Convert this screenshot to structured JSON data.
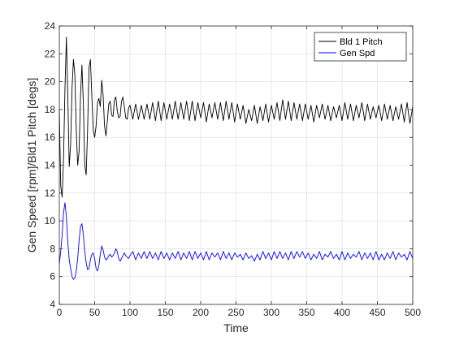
{
  "chart_data": {
    "type": "line",
    "title": "",
    "xlabel": "Time",
    "ylabel": "Gen Speed [rpm]/Bld1 Pitch [degs]",
    "xlim": [
      0,
      500
    ],
    "ylim": [
      4,
      24
    ],
    "xticks": [
      0,
      50,
      100,
      150,
      200,
      250,
      300,
      350,
      400,
      450,
      500
    ],
    "yticks": [
      4,
      6,
      8,
      10,
      12,
      14,
      16,
      18,
      20,
      22,
      24
    ],
    "grid": true,
    "legend_position": "top-right",
    "series": [
      {
        "name": "Bld 1 Pitch",
        "color": "#000000",
        "x": [
          0,
          2,
          4,
          6,
          8,
          10,
          12,
          14,
          16,
          18,
          20,
          22,
          24,
          26,
          28,
          30,
          32,
          34,
          36,
          38,
          40,
          42,
          44,
          46,
          48,
          50,
          52,
          54,
          56,
          58,
          60,
          62,
          64,
          66,
          68,
          70,
          72,
          74,
          76,
          78,
          80,
          82,
          84,
          86,
          88,
          90,
          92,
          94,
          96,
          98,
          100,
          104,
          108,
          112,
          116,
          120,
          124,
          128,
          132,
          136,
          140,
          144,
          148,
          152,
          156,
          160,
          164,
          168,
          172,
          176,
          180,
          184,
          188,
          192,
          196,
          200,
          204,
          208,
          212,
          216,
          220,
          224,
          228,
          232,
          236,
          240,
          244,
          248,
          252,
          256,
          260,
          264,
          268,
          272,
          276,
          280,
          284,
          288,
          292,
          296,
          300,
          304,
          308,
          312,
          316,
          320,
          324,
          328,
          332,
          336,
          340,
          344,
          348,
          352,
          356,
          360,
          364,
          368,
          372,
          376,
          380,
          384,
          388,
          392,
          396,
          400,
          404,
          408,
          412,
          416,
          420,
          424,
          428,
          432,
          436,
          440,
          444,
          448,
          452,
          456,
          460,
          464,
          468,
          472,
          476,
          480,
          484,
          488,
          492,
          496,
          500
        ],
        "values": [
          18.0,
          12.5,
          11.7,
          14.5,
          19.5,
          23.2,
          19.0,
          13.9,
          15.5,
          19.5,
          21.6,
          20.5,
          16.5,
          14.0,
          15.0,
          19.0,
          21.2,
          18.5,
          14.0,
          13.3,
          16.5,
          21.0,
          21.6,
          19.0,
          16.5,
          16.0,
          16.8,
          18.5,
          18.8,
          18.2,
          20.1,
          19.0,
          16.8,
          16.1,
          17.2,
          18.4,
          18.6,
          17.6,
          17.5,
          18.7,
          18.9,
          17.9,
          17.4,
          17.5,
          18.6,
          18.9,
          18.2,
          17.4,
          17.3,
          18.1,
          18.3,
          17.3,
          18.4,
          17.3,
          18.3,
          17.3,
          18.4,
          17.3,
          18.5,
          17.2,
          18.6,
          17.2,
          18.5,
          17.3,
          18.4,
          17.3,
          18.6,
          17.3,
          18.5,
          17.3,
          18.6,
          17.2,
          18.6,
          17.2,
          18.5,
          17.4,
          18.5,
          17.1,
          18.4,
          17.4,
          18.5,
          17.3,
          18.5,
          17.2,
          18.6,
          17.3,
          18.5,
          17.1,
          18.4,
          17.3,
          18.3,
          17.0,
          18.0,
          17.2,
          18.3,
          17.0,
          18.2,
          17.2,
          18.4,
          17.1,
          18.3,
          17.3,
          18.5,
          17.2,
          18.7,
          17.3,
          18.6,
          17.2,
          18.5,
          17.3,
          18.4,
          17.2,
          18.4,
          17.3,
          18.3,
          17.1,
          18.3,
          17.4,
          18.4,
          17.3,
          18.3,
          17.2,
          18.2,
          17.4,
          18.3,
          17.2,
          18.5,
          17.3,
          18.4,
          17.2,
          18.3,
          17.4,
          18.5,
          17.2,
          18.4,
          17.3,
          18.2,
          17.4,
          18.3,
          17.2,
          18.4,
          17.3,
          18.3,
          17.2,
          18.2,
          17.3,
          18.4,
          17.1,
          18.5,
          17.0,
          18.2
        ]
      },
      {
        "name": "Gen Spd",
        "color": "#0000ff",
        "x": [
          0,
          2,
          4,
          6,
          8,
          10,
          12,
          14,
          16,
          18,
          20,
          22,
          24,
          26,
          28,
          30,
          32,
          34,
          36,
          38,
          40,
          42,
          44,
          46,
          48,
          50,
          52,
          54,
          56,
          58,
          60,
          62,
          64,
          66,
          68,
          70,
          72,
          74,
          76,
          78,
          80,
          82,
          84,
          86,
          88,
          90,
          92,
          94,
          96,
          98,
          100,
          104,
          108,
          112,
          116,
          120,
          124,
          128,
          132,
          136,
          140,
          144,
          148,
          152,
          156,
          160,
          164,
          168,
          172,
          176,
          180,
          184,
          188,
          192,
          196,
          200,
          204,
          208,
          212,
          216,
          220,
          224,
          228,
          232,
          236,
          240,
          244,
          248,
          252,
          256,
          260,
          264,
          268,
          272,
          276,
          280,
          284,
          288,
          292,
          296,
          300,
          304,
          308,
          312,
          316,
          320,
          324,
          328,
          332,
          336,
          340,
          344,
          348,
          352,
          356,
          360,
          364,
          368,
          372,
          376,
          380,
          384,
          388,
          392,
          396,
          400,
          404,
          408,
          412,
          416,
          420,
          424,
          428,
          432,
          436,
          440,
          444,
          448,
          452,
          456,
          460,
          464,
          468,
          472,
          476,
          480,
          484,
          488,
          492,
          496,
          500
        ],
        "values": [
          6.9,
          7.8,
          9.0,
          10.6,
          11.3,
          10.3,
          8.5,
          7.2,
          6.6,
          6.0,
          5.8,
          5.9,
          6.4,
          7.3,
          8.6,
          9.6,
          9.8,
          9.0,
          7.8,
          7.0,
          6.5,
          6.6,
          7.2,
          7.6,
          7.7,
          7.3,
          6.6,
          6.4,
          6.8,
          7.6,
          8.2,
          7.9,
          7.4,
          7.2,
          7.3,
          7.5,
          7.6,
          7.4,
          7.5,
          7.7,
          8.0,
          7.8,
          7.3,
          7.1,
          7.3,
          7.5,
          7.7,
          7.5,
          7.4,
          7.3,
          7.5,
          7.8,
          7.2,
          7.7,
          7.3,
          7.8,
          7.3,
          7.8,
          7.3,
          7.7,
          7.2,
          7.8,
          7.3,
          7.7,
          7.2,
          7.7,
          7.3,
          7.8,
          7.2,
          7.7,
          7.3,
          7.8,
          7.2,
          7.8,
          7.3,
          7.7,
          7.2,
          7.8,
          7.2,
          7.7,
          7.4,
          7.7,
          7.2,
          7.8,
          7.3,
          7.7,
          7.2,
          7.7,
          7.4,
          7.6,
          7.2,
          7.7,
          7.3,
          7.5,
          7.1,
          7.6,
          7.2,
          7.8,
          7.3,
          7.7,
          7.2,
          7.8,
          7.3,
          7.8,
          7.3,
          7.7,
          7.2,
          7.8,
          7.3,
          7.8,
          7.4,
          7.8,
          7.3,
          7.7,
          7.2,
          7.6,
          7.3,
          7.8,
          7.2,
          7.6,
          7.4,
          7.8,
          7.3,
          7.6,
          7.2,
          7.8,
          7.2,
          7.7,
          7.3,
          7.6,
          7.4,
          7.8,
          7.2,
          7.7,
          7.3,
          7.7,
          7.2,
          7.8,
          7.2,
          7.6,
          7.2,
          7.7,
          7.3,
          7.8,
          7.2,
          7.7,
          7.4,
          7.6,
          7.2,
          7.8,
          7.3
        ]
      }
    ]
  }
}
